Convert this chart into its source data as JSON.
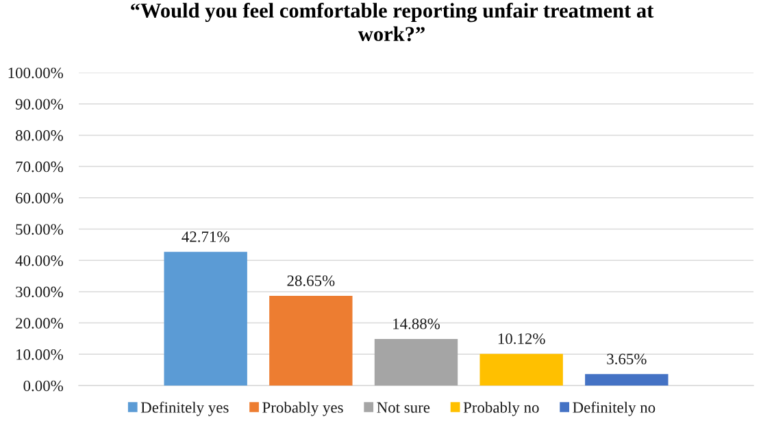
{
  "chart_data": {
    "type": "bar",
    "title": "“Would you feel comfortable reporting unfair treatment at work?”",
    "categories": [
      null
    ],
    "series": [
      {
        "name": "Definitely yes",
        "color": "#5b9bd5",
        "values": [
          42.71
        ],
        "value_labels": [
          "42.71%"
        ]
      },
      {
        "name": "Probably yes",
        "color": "#ed7d31",
        "values": [
          28.65
        ],
        "value_labels": [
          "28.65%"
        ]
      },
      {
        "name": "Not sure",
        "color": "#a5a5a5",
        "values": [
          14.88
        ],
        "value_labels": [
          "14.88%"
        ]
      },
      {
        "name": "Probably no",
        "color": "#ffc000",
        "values": [
          10.12
        ],
        "value_labels": [
          "10.12%"
        ]
      },
      {
        "name": "Definitely no",
        "color": "#4472c4",
        "values": [
          3.65
        ],
        "value_labels": [
          "3.65%"
        ]
      }
    ],
    "ylim": [
      0,
      100
    ],
    "yticks": [
      {
        "value": 0,
        "label": "0.00%"
      },
      {
        "value": 10,
        "label": "10.00%"
      },
      {
        "value": 20,
        "label": "20.00%"
      },
      {
        "value": 30,
        "label": "30.00%"
      },
      {
        "value": 40,
        "label": "40.00%"
      },
      {
        "value": 50,
        "label": "50.00%"
      },
      {
        "value": 60,
        "label": "60.00%"
      },
      {
        "value": 70,
        "label": "70.00%"
      },
      {
        "value": 80,
        "label": "80.00%"
      },
      {
        "value": 90,
        "label": "90.00%"
      },
      {
        "value": 100,
        "label": "100.00%"
      }
    ],
    "grid": "y",
    "legend": "bottom",
    "tick_labels": "y"
  }
}
